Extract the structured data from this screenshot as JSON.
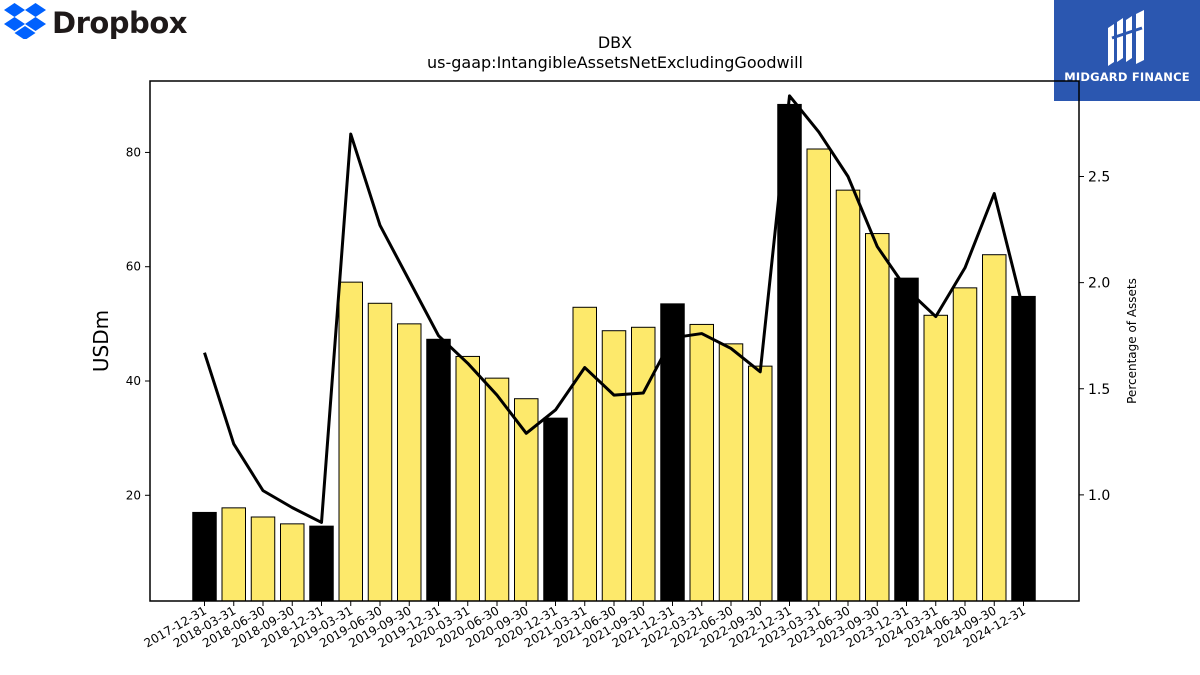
{
  "header": {
    "left_brand": "Dropbox",
    "left_brand_icon": "dropbox-box-icon",
    "right_brand": "MIDGARD FINANCE",
    "right_brand_icon": "midgard-finance-logo-icon",
    "right_brand_color": "#2b57b0"
  },
  "chart_data": {
    "type": "bar",
    "title": "DBX",
    "subtitle": "us-gaap:IntangibleAssetsNetExcludingGoodwill",
    "ylabel": "USDm",
    "y2label": "Percentage of Assets",
    "ylim": [
      1.5,
      92.5
    ],
    "y2lim": [
      0.5,
      2.95
    ],
    "yticks": [
      20,
      40,
      60,
      80
    ],
    "y2ticks": [
      1.0,
      1.5,
      2.0,
      2.5
    ],
    "y2tick_labels": [
      "1.0",
      "1.5",
      "2.0",
      "2.5"
    ],
    "categories": [
      "2017-12-31",
      "2018-03-31",
      "2018-06-30",
      "2018-09-30",
      "2018-12-31",
      "2019-03-31",
      "2019-06-30",
      "2019-09-30",
      "2019-12-31",
      "2020-03-31",
      "2020-06-30",
      "2020-09-30",
      "2020-12-31",
      "2021-03-31",
      "2021-06-30",
      "2021-09-30",
      "2021-12-31",
      "2022-03-31",
      "2022-06-30",
      "2022-09-30",
      "2022-12-31",
      "2023-03-31",
      "2023-06-30",
      "2023-09-30",
      "2023-12-31",
      "2024-03-31",
      "2024-06-30",
      "2024-09-30",
      "2024-12-31"
    ],
    "series": [
      {
        "type": "bar",
        "axis": "left",
        "values": [
          17.0,
          17.8,
          16.2,
          15.0,
          14.6,
          57.3,
          53.6,
          50.0,
          47.3,
          44.3,
          40.5,
          36.9,
          33.5,
          52.9,
          48.8,
          49.4,
          53.5,
          49.9,
          46.5,
          42.6,
          88.4,
          80.6,
          73.4,
          65.8,
          58.0,
          51.5,
          56.3,
          62.1,
          54.8
        ],
        "fill_colors": [
          "#000000",
          "#fde96b",
          "#fde96b",
          "#fde96b",
          "#000000",
          "#fde96b",
          "#fde96b",
          "#fde96b",
          "#000000",
          "#fde96b",
          "#fde96b",
          "#fde96b",
          "#000000",
          "#fde96b",
          "#fde96b",
          "#fde96b",
          "#000000",
          "#fde96b",
          "#fde96b",
          "#fde96b",
          "#000000",
          "#fde96b",
          "#fde96b",
          "#fde96b",
          "#000000",
          "#fde96b",
          "#fde96b",
          "#fde96b",
          "#000000"
        ]
      },
      {
        "type": "line",
        "axis": "right",
        "color": "#000000",
        "values": [
          1.67,
          1.24,
          1.02,
          0.94,
          0.87,
          2.7,
          2.27,
          2.01,
          1.75,
          1.62,
          1.47,
          1.29,
          1.4,
          1.6,
          1.47,
          1.48,
          1.74,
          1.76,
          1.69,
          1.58,
          2.88,
          2.71,
          2.5,
          2.17,
          1.97,
          1.84,
          2.07,
          2.42,
          1.87
        ]
      }
    ],
    "grid": false,
    "legend": "none"
  }
}
